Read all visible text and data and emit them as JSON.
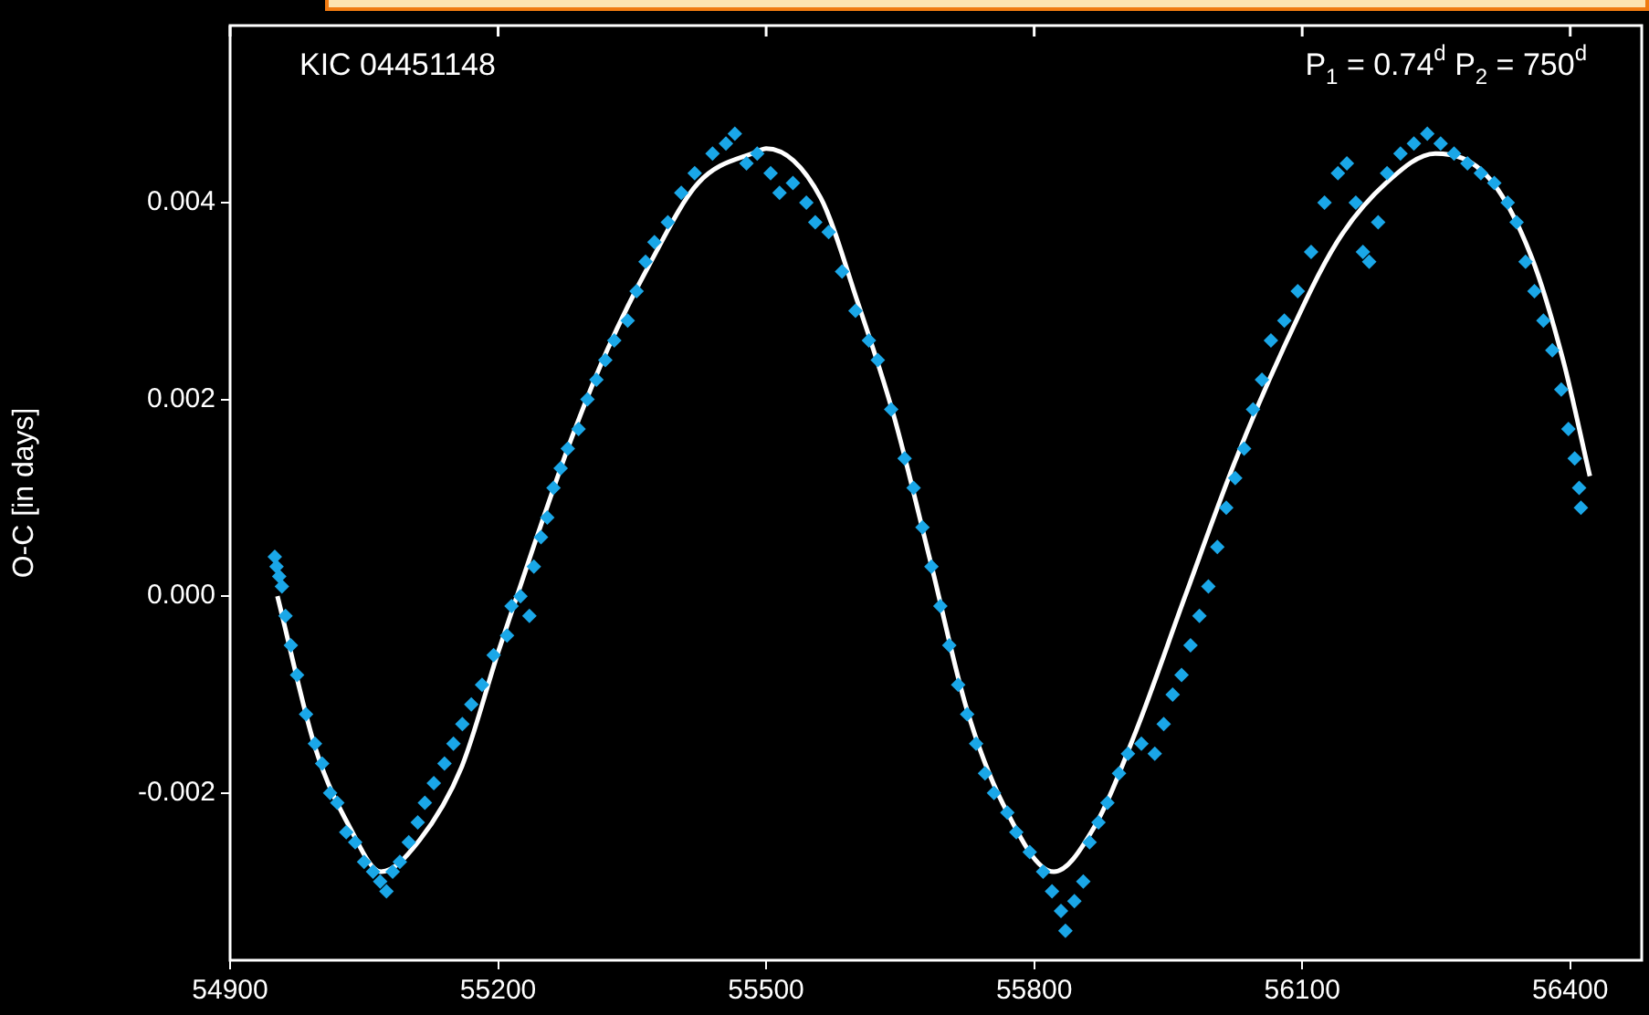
{
  "chart_data": {
    "type": "scatter",
    "ylabel": "O-C [in days]",
    "annotations": [
      "KIC 04451148",
      "P$_{1}$ = 0.74$^{d}$ P$_{2}$ = 750$^{d}$"
    ],
    "xlim": [
      54900,
      56480
    ],
    "xticks": [
      54900,
      55200,
      55500,
      55800,
      56100,
      56400
    ],
    "ylim": [
      -0.0037,
      0.0058
    ],
    "yticks": [
      -0.002,
      {
        "value": 0,
        "label": "0.000"
      },
      0.002,
      0.004
    ],
    "grid": false,
    "legend": false,
    "series": [
      {
        "color": "#1aa7e8",
        "marker": "diamond",
        "x": [
          54950,
          54952,
          54955,
          54958,
          54962,
          54968,
          54975,
          54985,
          54995,
          55003,
          55012,
          55020,
          55030,
          55040,
          55050,
          55060,
          55068,
          55075,
          55082,
          55090,
          55100,
          55110,
          55118,
          55128,
          55140,
          55150,
          55160,
          55170,
          55182,
          55195,
          55210,
          55215,
          55225,
          55235,
          55240,
          55248,
          55255,
          55262,
          55270,
          55278,
          55290,
          55300,
          55310,
          55320,
          55330,
          55345,
          55355,
          55365,
          55375,
          55390,
          55405,
          55420,
          55440,
          55455,
          55465,
          55478,
          55490,
          55505,
          55515,
          55530,
          55545,
          55555,
          55570,
          55585,
          55600,
          55615,
          55625,
          55640,
          55655,
          55665,
          55675,
          55685,
          55695,
          55705,
          55715,
          55725,
          55735,
          55745,
          55755,
          55770,
          55780,
          55795,
          55810,
          55820,
          55830,
          55835,
          55845,
          55855,
          55862,
          55872,
          55882,
          55895,
          55905,
          55920,
          55935,
          55945,
          55955,
          55965,
          55975,
          55985,
          55995,
          56005,
          56015,
          56025,
          56035,
          56045,
          56055,
          56065,
          56080,
          56095,
          56110,
          56125,
          56140,
          56150,
          56160,
          56168,
          56175,
          56185,
          56195,
          56210,
          56225,
          56240,
          56255,
          56270,
          56285,
          56300,
          56315,
          56330,
          56340,
          56350,
          56360,
          56370,
          56380,
          56390,
          56398,
          56405,
          56410,
          56412
        ],
        "values": [
          0.0004,
          0.0003,
          0.0002,
          0.0001,
          -0.0002,
          -0.0005,
          -0.0008,
          -0.0012,
          -0.0015,
          -0.0017,
          -0.002,
          -0.0021,
          -0.0024,
          -0.0025,
          -0.0027,
          -0.0028,
          -0.0029,
          -0.003,
          -0.0028,
          -0.0027,
          -0.0025,
          -0.0023,
          -0.0021,
          -0.0019,
          -0.0017,
          -0.0015,
          -0.0013,
          -0.0011,
          -0.0009,
          -0.0006,
          -0.0004,
          -0.0001,
          0,
          -0.0002,
          0.0003,
          0.0006,
          0.0008,
          0.0011,
          0.0013,
          0.0015,
          0.0017,
          0.002,
          0.0022,
          0.0024,
          0.0026,
          0.0028,
          0.0031,
          0.0034,
          0.0036,
          0.0038,
          0.0041,
          0.0043,
          0.0045,
          0.0046,
          0.0047,
          0.0044,
          0.0045,
          0.0043,
          0.0041,
          0.0042,
          0.004,
          0.0038,
          0.0037,
          0.0033,
          0.0029,
          0.0026,
          0.0024,
          0.0019,
          0.0014,
          0.0011,
          0.0007,
          0.0003,
          -0.0001,
          -0.0005,
          -0.0009,
          -0.0012,
          -0.0015,
          -0.0018,
          -0.002,
          -0.0022,
          -0.0024,
          -0.0026,
          -0.0028,
          -0.003,
          -0.0032,
          -0.0034,
          -0.0031,
          -0.0029,
          -0.0025,
          -0.0023,
          -0.0021,
          -0.0018,
          -0.0016,
          -0.0015,
          -0.0016,
          -0.0013,
          -0.001,
          -0.0008,
          -0.0005,
          -0.0002,
          0.0001,
          0.0005,
          0.0009,
          0.0012,
          0.0015,
          0.0019,
          0.0022,
          0.0026,
          0.0028,
          0.0031,
          0.0035,
          0.004,
          0.0043,
          0.0044,
          0.004,
          0.0035,
          0.0034,
          0.0038,
          0.0043,
          0.0045,
          0.0046,
          0.0047,
          0.0046,
          0.0045,
          0.0044,
          0.0043,
          0.0042,
          0.004,
          0.0038,
          0.0034,
          0.0031,
          0.0028,
          0.0025,
          0.0021,
          0.0017,
          0.0014,
          0.0011,
          0.0009
        ]
      },
      {
        "type": "line",
        "color": "#ffffff",
        "marker": "none",
        "line_style": "solid",
        "x": [
          54953,
          54996,
          55034,
          55069,
          55112,
          55159,
          55200,
          55241,
          55282,
          55322,
          55371,
          55424,
          55490,
          55500,
          55561,
          55602,
          55643,
          55684,
          55724,
          55765,
          55822,
          55867,
          55914,
          55969,
          56024,
          56078,
          56139,
          56194,
          56249,
          56310,
          56357,
          56392,
          56422
        ],
        "values": [
          0,
          -0.00156,
          -0.00235,
          -0.0028,
          -0.00248,
          -0.00174,
          -0.00057,
          0.00054,
          0.0016,
          0.0025,
          0.0034,
          0.0042,
          0.00452,
          0.00455,
          0.00405,
          0.003,
          0.00183,
          0.00035,
          -0.00113,
          -0.00211,
          -0.0028,
          -0.00235,
          -0.00137,
          0,
          0.00135,
          0.0025,
          0.0036,
          0.0042,
          0.0045,
          0.00424,
          0.00344,
          0.0024,
          0.00122
        ]
      }
    ]
  }
}
